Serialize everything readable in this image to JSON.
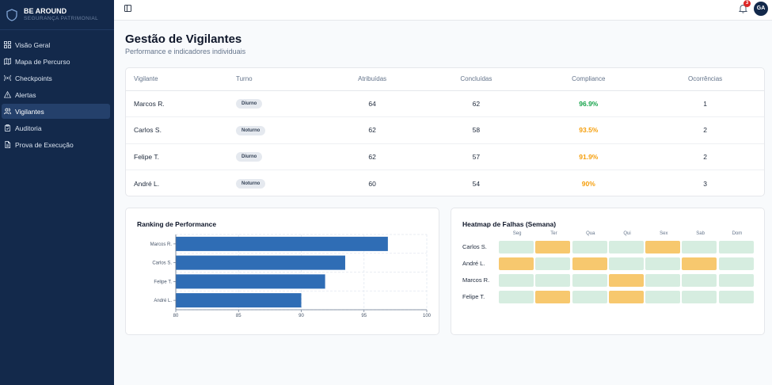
{
  "brand": {
    "name": "BE AROUND",
    "subtitle": "SEGURANÇA PATRIMONIAL"
  },
  "sidebar": {
    "items": [
      {
        "label": "Visão Geral",
        "icon": "grid-icon",
        "active": false
      },
      {
        "label": "Mapa de Percurso",
        "icon": "map-icon",
        "active": false
      },
      {
        "label": "Checkpoints",
        "icon": "radio-icon",
        "active": false
      },
      {
        "label": "Alertas",
        "icon": "alert-triangle-icon",
        "active": false
      },
      {
        "label": "Vigilantes",
        "icon": "users-icon",
        "active": true
      },
      {
        "label": "Auditoria",
        "icon": "clipboard-icon",
        "active": false
      },
      {
        "label": "Prova de Execução",
        "icon": "file-icon",
        "active": false
      }
    ]
  },
  "topbar": {
    "notification_count": "3",
    "avatar_initials": "GA"
  },
  "page": {
    "title": "Gestão de Vigilantes",
    "subtitle": "Performance e indicadores individuais"
  },
  "table": {
    "headers": [
      "Vigilante",
      "Turno",
      "Atribuídas",
      "Concluídas",
      "Compliance",
      "Ocorrências"
    ],
    "rows": [
      {
        "name": "Marcos R.",
        "shift": "Diurno",
        "assigned": "64",
        "done": "62",
        "compliance": "96.9%",
        "status": "good",
        "incidents": "1"
      },
      {
        "name": "Carlos S.",
        "shift": "Noturno",
        "assigned": "62",
        "done": "58",
        "compliance": "93.5%",
        "status": "warn",
        "incidents": "2"
      },
      {
        "name": "Felipe T.",
        "shift": "Diurno",
        "assigned": "62",
        "done": "57",
        "compliance": "91.9%",
        "status": "warn",
        "incidents": "2"
      },
      {
        "name": "André L.",
        "shift": "Noturno",
        "assigned": "60",
        "done": "54",
        "compliance": "90%",
        "status": "warn",
        "incidents": "3"
      }
    ]
  },
  "colors": {
    "good": "#16a34a",
    "warn": "#f59e0b",
    "bar": "#2f6db5",
    "heat_ok": "#d6ede0",
    "heat_fail": "#f7c86e"
  },
  "ranking": {
    "title": "Ranking de Performance",
    "chart_data": {
      "type": "bar",
      "orientation": "horizontal",
      "categories": [
        "Marcos R.",
        "Carlos S.",
        "Felipe T.",
        "André L."
      ],
      "values": [
        96.9,
        93.5,
        91.9,
        90
      ],
      "xlim": [
        80,
        100
      ],
      "xticks": [
        "80",
        "85",
        "90",
        "95",
        "100"
      ],
      "grid": true
    }
  },
  "heatmap": {
    "title": "Heatmap de Falhas (Semana)",
    "days": [
      "Seg",
      "Ter",
      "Qua",
      "Qui",
      "Sex",
      "Sab",
      "Dom"
    ],
    "rows": [
      {
        "name": "Carlos S.",
        "values": [
          0,
          1,
          0,
          0,
          1,
          0,
          0
        ]
      },
      {
        "name": "André L.",
        "values": [
          1,
          0,
          1,
          0,
          0,
          1,
          0
        ]
      },
      {
        "name": "Marcos R.",
        "values": [
          0,
          0,
          0,
          1,
          0,
          0,
          0
        ]
      },
      {
        "name": "Felipe T.",
        "values": [
          0,
          1,
          0,
          1,
          0,
          0,
          0
        ]
      }
    ]
  }
}
